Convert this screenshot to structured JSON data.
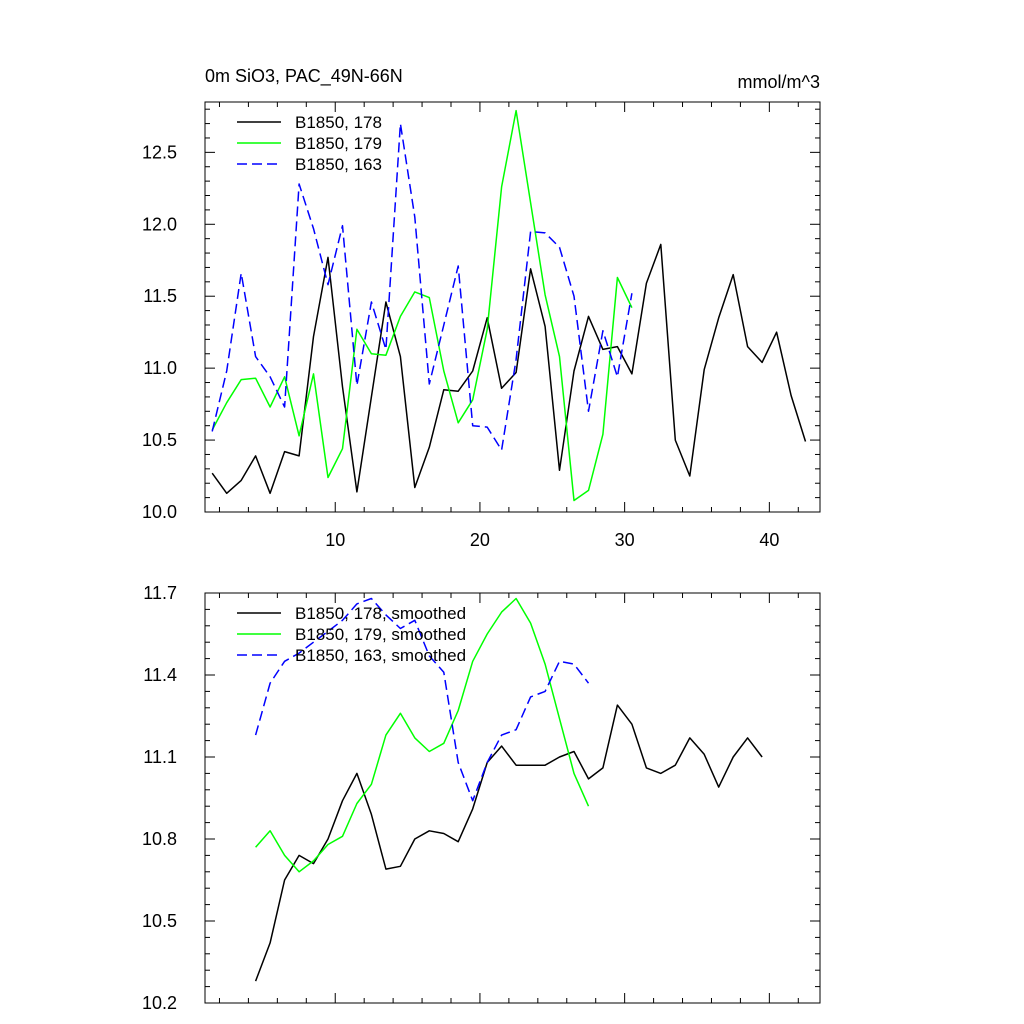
{
  "chart_data": [
    {
      "type": "line",
      "title": "0m SiO3, PAC_49N-66N",
      "units": "mmol/m^3",
      "xlim": [
        1,
        43.5
      ],
      "ylim": [
        10.0,
        12.85
      ],
      "xticks": [
        10,
        20,
        30,
        40
      ],
      "xtick_labels": [
        "10",
        "20",
        "30",
        "40"
      ],
      "yticks": [
        10.0,
        10.5,
        11.0,
        11.5,
        12.0,
        12.5
      ],
      "ytick_labels": [
        "10.0",
        "10.5",
        "11.0",
        "11.5",
        "12.0",
        "12.5"
      ],
      "grid": false,
      "legend_position": "top-left",
      "series": [
        {
          "name": "B1850, 178",
          "color": "#000000",
          "dash": "solid",
          "x": [
            1.5,
            2.5,
            3.5,
            4.5,
            5.5,
            6.5,
            7.5,
            8.5,
            9.5,
            10.5,
            11.5,
            12.5,
            13.5,
            14.5,
            15.5,
            16.5,
            17.5,
            18.5,
            19.5,
            20.5,
            21.5,
            22.5,
            23.5,
            24.5,
            25.5,
            26.5,
            27.5,
            28.5,
            29.5,
            30.5,
            31.5,
            32.5,
            33.5,
            34.5,
            35.5,
            36.5,
            37.5,
            38.5,
            39.5,
            40.5,
            41.5,
            42.5
          ],
          "values": [
            10.27,
            10.13,
            10.22,
            10.39,
            10.13,
            10.42,
            10.39,
            11.22,
            11.77,
            10.87,
            10.14,
            10.8,
            11.46,
            11.08,
            10.17,
            10.45,
            10.85,
            10.84,
            10.98,
            11.35,
            10.86,
            10.97,
            11.69,
            11.29,
            10.29,
            10.98,
            11.36,
            11.13,
            11.15,
            10.96,
            11.59,
            11.86,
            10.5,
            10.25,
            10.99,
            11.35,
            11.65,
            11.15,
            11.04,
            11.25,
            10.81,
            10.49
          ]
        },
        {
          "name": "B1850, 179",
          "color": "#00ff00",
          "dash": "solid",
          "x": [
            1.5,
            2.5,
            3.5,
            4.5,
            5.5,
            6.5,
            7.5,
            8.5,
            9.5,
            10.5,
            11.5,
            12.5,
            13.5,
            14.5,
            15.5,
            16.5,
            17.5,
            18.5,
            19.5,
            20.5,
            21.5,
            22.5,
            23.5,
            24.5,
            25.5,
            26.5,
            27.5,
            28.5,
            29.5,
            30.5
          ],
          "values": [
            10.57,
            10.76,
            10.92,
            10.93,
            10.73,
            10.94,
            10.53,
            10.96,
            10.24,
            10.44,
            11.27,
            11.1,
            11.09,
            11.36,
            11.53,
            11.49,
            10.98,
            10.62,
            10.78,
            11.27,
            12.26,
            12.79,
            12.15,
            11.51,
            11.08,
            10.08,
            10.15,
            10.54,
            11.63,
            11.42
          ]
        },
        {
          "name": "B1850, 163",
          "color": "#0000ff",
          "dash": "dashed",
          "x": [
            1.5,
            2.5,
            3.5,
            4.5,
            5.5,
            6.5,
            7.5,
            8.5,
            9.5,
            10.5,
            11.5,
            12.5,
            13.5,
            14.5,
            15.5,
            16.5,
            17.5,
            18.5,
            19.5,
            20.5,
            21.5,
            22.5,
            23.5,
            24.5,
            25.5,
            26.5,
            27.5,
            28.5,
            29.5,
            30.5
          ],
          "values": [
            10.56,
            10.98,
            11.66,
            11.08,
            10.94,
            10.73,
            12.28,
            11.97,
            11.58,
            11.99,
            10.88,
            11.46,
            11.13,
            12.7,
            12.05,
            10.89,
            11.3,
            11.71,
            10.6,
            10.59,
            10.43,
            11.06,
            11.95,
            11.94,
            11.84,
            11.5,
            10.7,
            11.26,
            10.94,
            11.52
          ]
        }
      ]
    },
    {
      "type": "line",
      "title": "",
      "xlim": [
        1,
        43.5
      ],
      "ylim": [
        10.2,
        11.7
      ],
      "xticks": [
        10,
        20,
        30,
        40
      ],
      "yticks": [
        10.2,
        10.5,
        10.8,
        11.1,
        11.4,
        11.7
      ],
      "ytick_labels": [
        "10.2",
        "10.5",
        "10.8",
        "11.1",
        "11.4",
        "11.7"
      ],
      "grid": false,
      "legend_position": "top-left",
      "series": [
        {
          "name": "B1850, 178, smoothed",
          "color": "#000000",
          "dash": "solid",
          "x": [
            4.5,
            5.5,
            6.5,
            7.5,
            8.5,
            9.5,
            10.5,
            11.5,
            12.5,
            13.5,
            14.5,
            15.5,
            16.5,
            17.5,
            18.5,
            19.5,
            20.5,
            21.5,
            22.5,
            23.5,
            24.5,
            25.5,
            26.5,
            27.5,
            28.5,
            29.5,
            30.5,
            31.5,
            32.5,
            33.5,
            34.5,
            35.5,
            36.5,
            37.5,
            38.5,
            39.5
          ],
          "values": [
            10.28,
            10.42,
            10.65,
            10.74,
            10.71,
            10.8,
            10.94,
            11.04,
            10.89,
            10.69,
            10.7,
            10.8,
            10.83,
            10.82,
            10.79,
            10.91,
            11.08,
            11.14,
            11.07,
            11.07,
            11.07,
            11.1,
            11.12,
            11.02,
            11.06,
            11.29,
            11.22,
            11.06,
            11.04,
            11.07,
            11.17,
            11.11,
            10.99,
            11.1,
            11.17,
            11.1
          ]
        },
        {
          "name": "B1850, 179, smoothed",
          "color": "#00ff00",
          "dash": "solid",
          "x": [
            4.5,
            5.5,
            6.5,
            7.5,
            8.5,
            9.5,
            10.5,
            11.5,
            12.5,
            13.5,
            14.5,
            15.5,
            16.5,
            17.5,
            18.5,
            19.5,
            20.5,
            21.5,
            22.5,
            23.5,
            24.5,
            25.5,
            26.5,
            27.5
          ],
          "values": [
            10.77,
            10.83,
            10.74,
            10.68,
            10.72,
            10.78,
            10.81,
            10.93,
            11.0,
            11.18,
            11.26,
            11.17,
            11.12,
            11.15,
            11.27,
            11.45,
            11.55,
            11.63,
            11.68,
            11.59,
            11.44,
            11.24,
            11.04,
            10.92
          ]
        },
        {
          "name": "B1850, 163, smoothed",
          "color": "#0000ff",
          "dash": "dashed",
          "x": [
            4.5,
            5.5,
            6.5,
            7.5,
            8.5,
            9.5,
            10.5,
            11.5,
            12.5,
            13.5,
            14.5,
            15.5,
            16.5,
            17.5,
            18.5,
            19.5,
            20.5,
            21.5,
            22.5,
            23.5,
            24.5,
            25.5,
            26.5,
            27.5
          ],
          "values": [
            11.18,
            11.37,
            11.45,
            11.48,
            11.52,
            11.56,
            11.6,
            11.66,
            11.68,
            11.62,
            11.57,
            11.6,
            11.47,
            11.41,
            11.08,
            10.94,
            11.08,
            11.18,
            11.2,
            11.32,
            11.34,
            11.45,
            11.44,
            11.37
          ]
        }
      ]
    }
  ]
}
